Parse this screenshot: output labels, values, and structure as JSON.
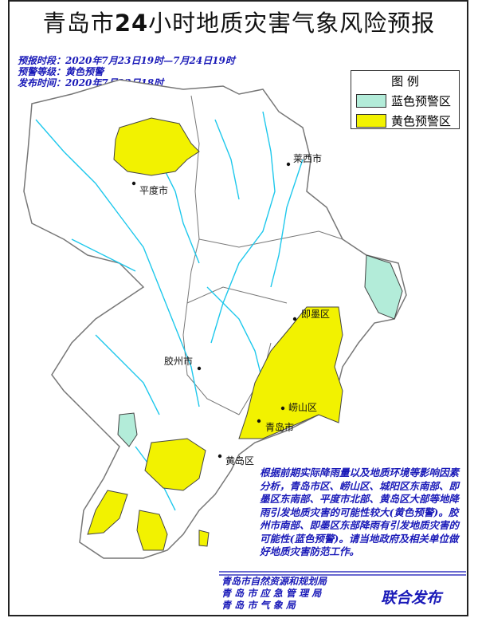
{
  "title": {
    "prefix": "青岛市",
    "number": "24",
    "suffix": "小时地质灾害气象风险预报"
  },
  "info": {
    "period": "预报时段：2020年7月23日19时—7月24日19时",
    "level": "预警等级：黄色预警",
    "issued": "发布时间：2020年7月23日18时"
  },
  "legend": {
    "title": "图 例",
    "items": [
      {
        "label": "蓝色预警区",
        "color": "#b3ecd9"
      },
      {
        "label": "黄色预警区",
        "color": "#f2f200"
      }
    ]
  },
  "map": {
    "river_color": "#1ec8ec",
    "border_color": "#777777",
    "labels": {
      "pingdu": "平度市",
      "laixi": "莱西市",
      "jimo": "即墨区",
      "jiaozhou": "胶州市",
      "laoshan": "崂山区",
      "qingdao": "青岛市",
      "huangdao": "黄岛区"
    }
  },
  "description": "根据前期实际降雨量以及地质环境等影响因素分析，青岛市区、崂山区、城阳区东南部、即墨区东南部、平度市北部、黄岛区大部等地降雨引发地质灾害的可能性较大(黄色预警)。胶州市南部、即墨区东部降雨有引发地质灾害的可能性(蓝色预警)。请当地政府及相关单位做好地质灾害防范工作。",
  "footer": {
    "agencies": [
      "青岛市自然资源和规划局",
      "青 岛 市 应 急 管 理 局",
      "青  岛  市  气  象  局"
    ],
    "joint": "联合发布"
  }
}
